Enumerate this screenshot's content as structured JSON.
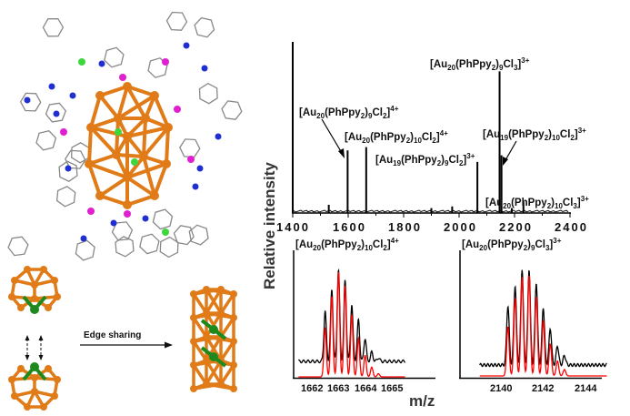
{
  "scheme": {
    "caption": "Edge sharing",
    "colors": {
      "gold": "#e07b18",
      "chlorine": "#3dd63d",
      "nitrogen": "#2030d0",
      "phosphorus": "#e020d0",
      "carbon": "#888888",
      "core": "#1e8a1e"
    }
  },
  "chart_data": [
    {
      "type": "line",
      "title": "",
      "xlabel": "m/z",
      "ylabel": "Relative intensity",
      "xlim": [
        1400,
        2400
      ],
      "ylim": [
        0,
        1
      ],
      "xticks": [
        "1400",
        "1600",
        "1800",
        "2000",
        "2200",
        "2400"
      ],
      "grid": false,
      "peaks": [
        {
          "mz": 1530,
          "rel": 0.05
        },
        {
          "mz": 1598,
          "rel": 0.38
        },
        {
          "mz": 1665,
          "rel": 0.4
        },
        {
          "mz": 1900,
          "rel": 0.03
        },
        {
          "mz": 1975,
          "rel": 0.04
        },
        {
          "mz": 2066,
          "rel": 0.31
        },
        {
          "mz": 2146,
          "rel": 0.86
        },
        {
          "mz": 2153,
          "rel": 0.35
        },
        {
          "mz": 2190,
          "rel": 0.03
        },
        {
          "mz": 2232,
          "rel": 0.07
        }
      ],
      "annotations": [
        {
          "label": "[Au20(PhPpy2)9Cl3]3+",
          "mz": 2146
        },
        {
          "label": "[Au20(PhPpy2)9Cl2]4+",
          "mz": 1598
        },
        {
          "label": "[Au20(PhPpy2)10Cl2]4+",
          "mz": 1665
        },
        {
          "label": "[Au19(PhPpy2)9Cl2]3+",
          "mz": 2066
        },
        {
          "label": "[Au19(PhPpy2)10Cl2]3+",
          "mz": 2153
        },
        {
          "label": "[Au20(PhPpy2)10Cl3]3+",
          "mz": 2232
        }
      ]
    },
    {
      "type": "line",
      "title": "[Au20(PhPpy2)10Cl2]4+",
      "xlim": [
        1661.5,
        1665.5
      ],
      "xticks": [
        "1662",
        "1663",
        "1664",
        "1665"
      ],
      "positions": [
        1662.5,
        1662.75,
        1663.0,
        1663.25,
        1663.5,
        1663.75,
        1664.0,
        1664.25,
        1664.5
      ],
      "series": [
        {
          "color": "#000000",
          "values": [
            0.55,
            0.78,
            1.0,
            0.88,
            0.62,
            0.45,
            0.25,
            0.1,
            0.04
          ]
        },
        {
          "color": "#ff0000",
          "values": [
            0.46,
            0.75,
            0.98,
            0.85,
            0.58,
            0.36,
            0.2,
            0.09,
            0.03
          ]
        }
      ]
    },
    {
      "type": "line",
      "title": "[Au20(PhPpy2)9Cl3]3+",
      "xlim": [
        2139,
        2145
      ],
      "xticks": [
        "2140",
        "2142",
        "2144"
      ],
      "positions": [
        2140.33,
        2140.67,
        2141.0,
        2141.33,
        2141.67,
        2142.0,
        2142.33,
        2142.67,
        2143.0
      ],
      "series": [
        {
          "color": "#000000",
          "values": [
            0.62,
            0.83,
            1.0,
            1.0,
            0.86,
            0.6,
            0.38,
            0.2,
            0.1
          ]
        },
        {
          "color": "#ff0000",
          "values": [
            0.46,
            0.73,
            0.92,
            0.94,
            0.74,
            0.52,
            0.3,
            0.14,
            0.06
          ]
        }
      ]
    }
  ]
}
